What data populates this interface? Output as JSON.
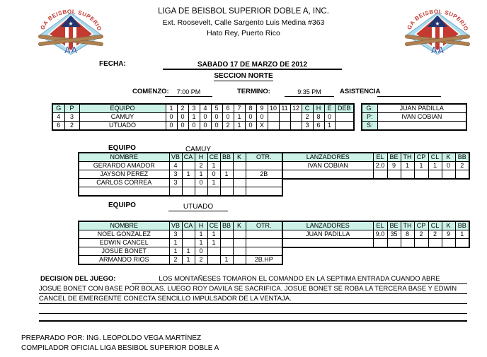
{
  "header": {
    "title": "LIGA DE BEISBOL SUPERIOR DOBLE A, INC.",
    "address1": "Ext. Roosevelt, Calle Sargento Luis Medina #363",
    "address2": "Hato Rey, Puerto Rico",
    "logo_arc": "LIGA BEISBOL SUPERIOR",
    "logo_aa": "AA"
  },
  "meta": {
    "fecha_label": "FECHA:",
    "fecha_value": "SABADO 17 DE MARZO DE 2012",
    "seccion": "SECCION NORTE",
    "comenzo_label": "COMENZO:",
    "comenzo_value": "7:00 PM",
    "termino_label": "TERMINO:",
    "termino_value": "9:35 PM",
    "asistencia_label": "ASISTENCIA",
    "asistencia_value": ""
  },
  "linescore": {
    "headers": [
      "G",
      "P",
      "EQUIPO",
      "1",
      "2",
      "3",
      "4",
      "5",
      "6",
      "7",
      "8",
      "9",
      "10",
      "11",
      "12",
      "C",
      "H",
      "E",
      "DEB"
    ],
    "rows": [
      {
        "g": "4",
        "p": "3",
        "equipo": "CAMUY",
        "innings": [
          "0",
          "0",
          "1",
          "0",
          "0",
          "0",
          "1",
          "0",
          "0",
          "",
          "",
          ""
        ],
        "c": "2",
        "h": "8",
        "e": "0",
        "deb": ""
      },
      {
        "g": "6",
        "p": "2",
        "equipo": "UTUADO",
        "innings": [
          "0",
          "0",
          "0",
          "0",
          "0",
          "2",
          "1",
          "0",
          "X",
          "",
          "",
          ""
        ],
        "c": "3",
        "h": "6",
        "e": "1",
        "deb": ""
      }
    ]
  },
  "officials": {
    "rows": [
      {
        "label": "G:",
        "value": "JUAN PADILLA"
      },
      {
        "label": "P:",
        "value": "IVAN COBIAN"
      },
      {
        "label": "S:",
        "value": ""
      }
    ]
  },
  "teams": [
    {
      "equipo_label": "EQUIPO",
      "equipo_value": "CAMUY",
      "batting": {
        "headers": [
          "NOMBRE",
          "VB",
          "CA",
          "H",
          "CE",
          "BB",
          "K",
          "OTR."
        ],
        "rows": [
          [
            "GERARDO AMADOR",
            "4",
            "",
            "2",
            "1",
            "",
            "",
            ""
          ],
          [
            "JAYSON PEREZ",
            "3",
            "1",
            "1",
            "0",
            "1",
            "",
            "2B"
          ],
          [
            "CARLOS CORREA",
            "3",
            "",
            "0",
            "1",
            "",
            "",
            ""
          ],
          [
            "",
            "",
            "",
            "",
            "",
            "",
            "",
            ""
          ]
        ]
      },
      "pitching": {
        "headers": [
          "LANZADORES",
          "EL",
          "BE",
          "TH",
          "CP",
          "CL",
          "K",
          "BB"
        ],
        "rows": [
          [
            "IVAN COBIAN",
            "2.0",
            "9",
            "1",
            "1",
            "1",
            "0",
            "2"
          ],
          [
            "",
            "",
            "",
            "",
            "",
            "",
            "",
            ""
          ]
        ]
      }
    },
    {
      "equipo_label": "EQUIPO",
      "equipo_value": "UTUADO",
      "batting": {
        "headers": [
          "NOMBRE",
          "VB",
          "CA",
          "H",
          "CE",
          "BB",
          "K",
          "OTR."
        ],
        "rows": [
          [
            "NOEL GONZALEZ",
            "3",
            "",
            "1",
            "1",
            "",
            "",
            ""
          ],
          [
            "EDWIN CANCEL",
            "1",
            "",
            "1",
            "1",
            "",
            "",
            ""
          ],
          [
            "JOSUE BONET",
            "1",
            "1",
            "0",
            "",
            "",
            "",
            ""
          ],
          [
            "ARMANDO RIOS",
            "2",
            "1",
            "2",
            "",
            "1",
            "",
            "2B.HP"
          ]
        ]
      },
      "pitching": {
        "headers": [
          "LANZADORES",
          "EL",
          "BE",
          "TH",
          "CP",
          "CL",
          "K",
          "BB"
        ],
        "rows": [
          [
            "JUAN PADILLA",
            "9.0",
            "35",
            "8",
            "2",
            "2",
            "9",
            "1"
          ],
          [
            "",
            "",
            "",
            "",
            "",
            "",
            "",
            ""
          ]
        ]
      }
    }
  ],
  "decision": {
    "label": "DECISION DEL JUEGO:",
    "line1": "LOS MONTAÑESES TOMARON EL COMANDO EN LA SEPTIMA ENTRADA CUANDO ABRE",
    "line2": "JOSUE BONET CON BASE POR BOLAS. LUEGO ROY DAVILA SE SACRIFICA. JOSUE BONET SE ROBA LA TERCERA BASE Y EDWIN",
    "line3": "CANCEL DE EMERGENTE CONECTA SENCILLO IMPULSADOR DE LA VENTAJA."
  },
  "footer": {
    "line1": "PREPARADO POR: ING. LEOPOLDO VEGA MARTÍNEZ",
    "line2": "COMPILADOR OFICIAL LIGA BESIBOL SUPERIOR DOBLE A"
  },
  "colors": {
    "header_fill": "#ccf2e8",
    "logo_red": "#c43a30",
    "logo_field_blue": "#abdcec",
    "logo_navy": "#2f4fa2",
    "logo_bat_brown": "#ae8052"
  }
}
